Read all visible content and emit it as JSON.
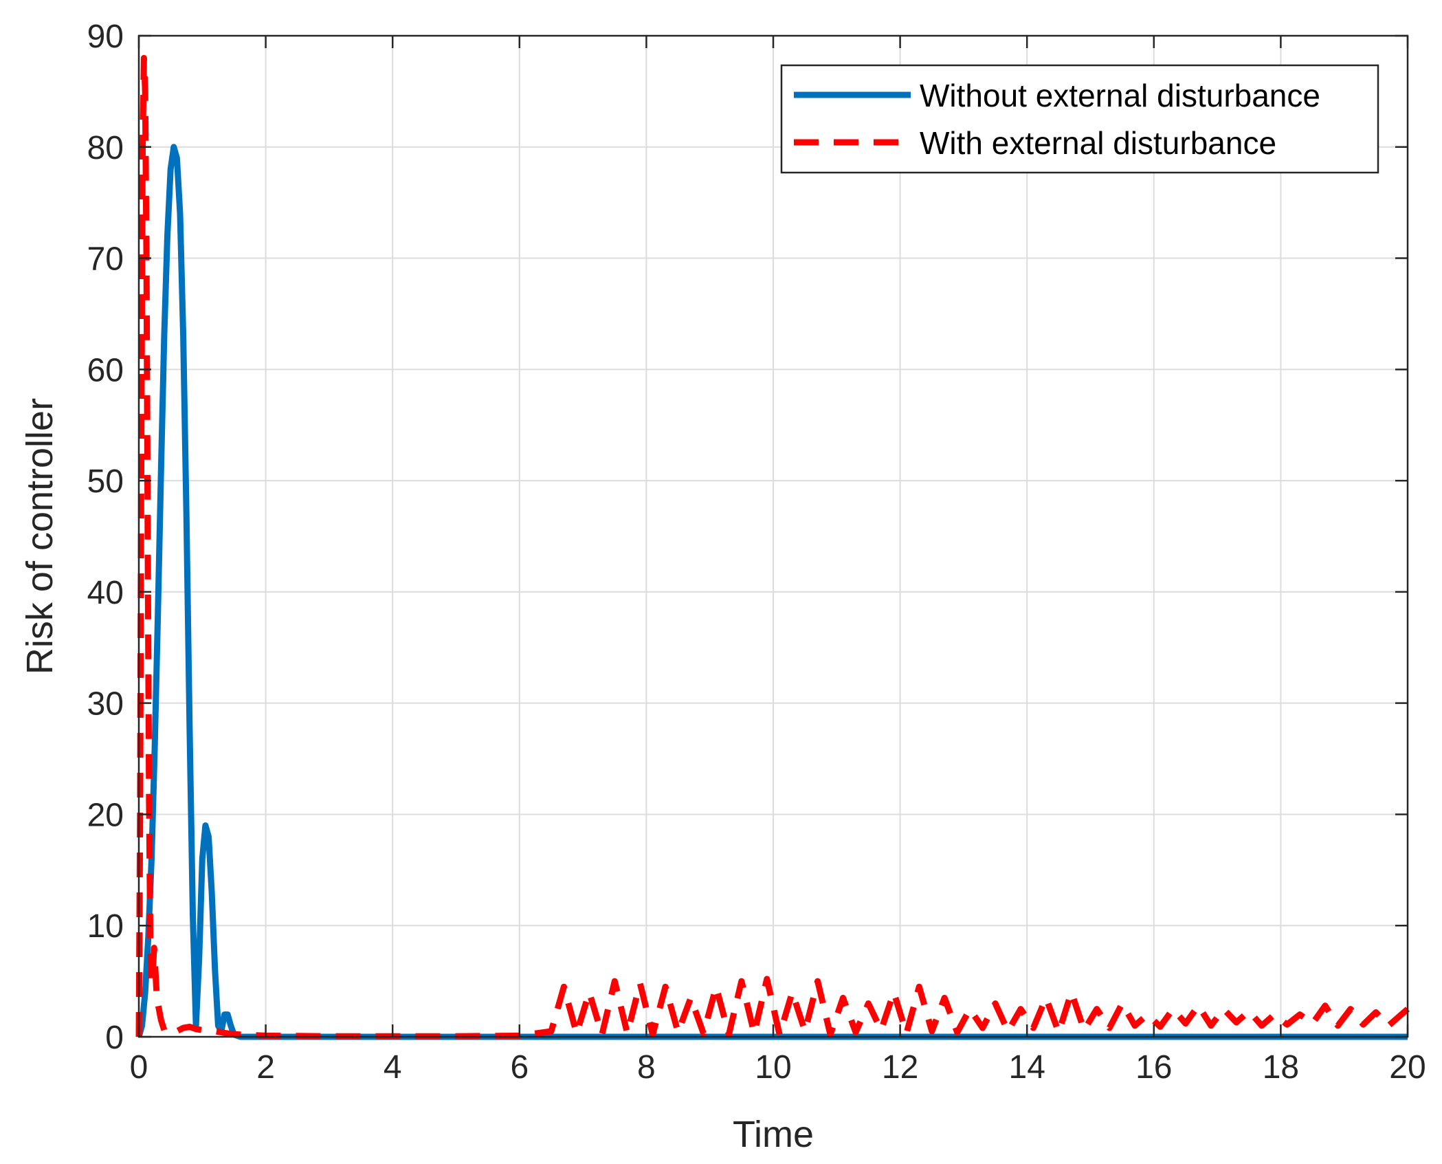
{
  "chart_data": {
    "type": "line",
    "title": "",
    "xlabel": "Time",
    "ylabel": "Risk of controller",
    "xlim": [
      0,
      20
    ],
    "ylim": [
      0,
      90
    ],
    "xticks": [
      "0",
      "2",
      "4",
      "6",
      "8",
      "10",
      "12",
      "14",
      "16",
      "18",
      "20"
    ],
    "yticks": [
      "0",
      "10",
      "20",
      "30",
      "40",
      "50",
      "60",
      "70",
      "80",
      "90"
    ],
    "grid": true,
    "legend_position": "top-right",
    "series": [
      {
        "name": "Without external disturbance",
        "color": "#0072BD",
        "style": "solid",
        "x": [
          0,
          0.05,
          0.1,
          0.15,
          0.2,
          0.25,
          0.3,
          0.35,
          0.4,
          0.45,
          0.5,
          0.55,
          0.6,
          0.65,
          0.7,
          0.75,
          0.8,
          0.85,
          0.9,
          0.95,
          1.0,
          1.05,
          1.1,
          1.15,
          1.2,
          1.25,
          1.3,
          1.35,
          1.4,
          1.45,
          1.5,
          1.6,
          1.8,
          2,
          4,
          6,
          8,
          10,
          12,
          14,
          16,
          18,
          20
        ],
        "y": [
          0,
          1,
          4,
          9,
          16,
          26,
          38,
          51,
          63,
          72,
          78,
          80,
          79,
          74,
          63,
          47,
          28,
          11,
          1,
          7,
          16,
          19,
          18,
          13,
          6,
          1,
          0.5,
          2,
          2,
          1,
          0.2,
          0,
          0,
          0,
          0,
          0,
          0,
          0,
          0,
          0,
          0,
          0,
          0
        ]
      },
      {
        "name": "With external disturbance",
        "color": "#FF0000",
        "style": "dashed",
        "x": [
          0,
          0.02,
          0.04,
          0.06,
          0.08,
          0.1,
          0.12,
          0.14,
          0.16,
          0.18,
          0.2,
          0.22,
          0.24,
          0.26,
          0.28,
          0.3,
          0.35,
          0.4,
          0.45,
          0.5,
          0.6,
          0.7,
          0.8,
          0.9,
          1.0,
          1.2,
          1.4,
          1.6,
          2.0,
          3.0,
          4.0,
          5.0,
          6.0,
          6.5,
          6.7,
          6.9,
          7.1,
          7.3,
          7.5,
          7.7,
          7.9,
          8.1,
          8.3,
          8.5,
          8.7,
          8.9,
          9.1,
          9.3,
          9.5,
          9.7,
          9.9,
          10.1,
          10.3,
          10.5,
          10.7,
          10.9,
          11.1,
          11.3,
          11.5,
          11.7,
          11.9,
          12.1,
          12.3,
          12.5,
          12.7,
          12.9,
          13.1,
          13.3,
          13.5,
          13.7,
          13.9,
          14.1,
          14.3,
          14.5,
          14.7,
          14.9,
          15.1,
          15.3,
          15.5,
          15.7,
          15.9,
          16.1,
          16.3,
          16.5,
          16.7,
          16.9,
          17.1,
          17.3,
          17.5,
          17.7,
          17.9,
          18.1,
          18.3,
          18.5,
          18.7,
          18.9,
          19.1,
          19.3,
          19.5,
          19.7,
          19.9,
          20.0
        ],
        "y": [
          0,
          20,
          55,
          80,
          88,
          85,
          70,
          45,
          22,
          9,
          5,
          6,
          8,
          6,
          4,
          3,
          1.5,
          0.6,
          0.4,
          0.3,
          0.5,
          0.8,
          0.9,
          0.7,
          0.6,
          0.5,
          0.3,
          0.2,
          0.1,
          0.05,
          0.05,
          0.05,
          0.1,
          0.5,
          4.5,
          0.3,
          4.0,
          0.2,
          5.0,
          0.3,
          4.8,
          0.2,
          4.5,
          0.4,
          3.5,
          0.3,
          4.5,
          0.2,
          5.0,
          0.3,
          5.2,
          0.2,
          4.0,
          0.5,
          5.0,
          0.2,
          3.5,
          0.4,
          3.0,
          0.6,
          4.0,
          0.3,
          4.5,
          0.5,
          3.5,
          0.4,
          2.5,
          0.8,
          3.0,
          0.5,
          2.5,
          0.8,
          3.5,
          0.4,
          4.0,
          0.6,
          2.5,
          0.8,
          3.0,
          1.0,
          2.0,
          0.9,
          2.5,
          1.2,
          2.8,
          1.0,
          2.5,
          1.3,
          2.3,
          1.0,
          2.0,
          1.1,
          2.0,
          1.2,
          2.8,
          1.0,
          2.5,
          1.1,
          2.2,
          1.0,
          2.0,
          2.5
        ]
      }
    ]
  }
}
